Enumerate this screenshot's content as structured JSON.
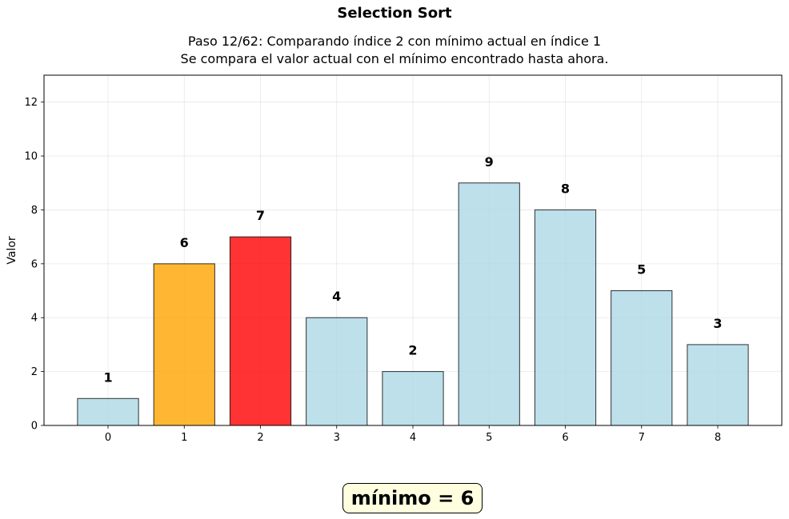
{
  "figure": {
    "title": "Selection Sort",
    "subtitle_line1": "Paso 12/62: Comparando índice 2 con mínimo actual en índice 1",
    "subtitle_line2": "Se compara el valor actual con el mínimo encontrado hasta ahora.",
    "badge_text": "mínimo = 6"
  },
  "chart_data": {
    "type": "bar",
    "categories": [
      "0",
      "1",
      "2",
      "3",
      "4",
      "5",
      "6",
      "7",
      "8"
    ],
    "values": [
      1,
      6,
      7,
      4,
      2,
      9,
      8,
      5,
      3
    ],
    "colors": [
      "#add8e6",
      "#ffa500",
      "#ff0000",
      "#add8e6",
      "#add8e6",
      "#add8e6",
      "#add8e6",
      "#add8e6",
      "#add8e6"
    ],
    "bar_opacity": 0.8,
    "xlabel": "",
    "ylabel": "Valor",
    "ylim": [
      0,
      13
    ],
    "yticks": [
      0,
      2,
      4,
      6,
      8,
      10,
      12
    ],
    "grid": true,
    "data_labels": true
  }
}
